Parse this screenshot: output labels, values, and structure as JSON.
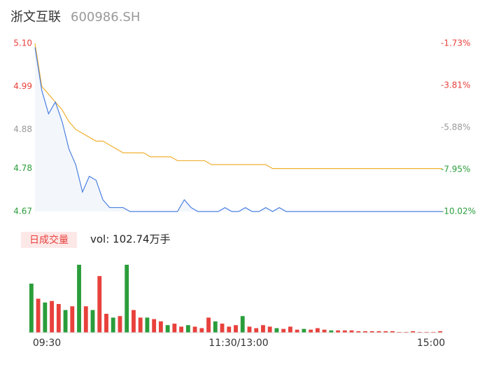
{
  "chart_data": {
    "type": "line",
    "title": "浙文互联",
    "subtitle": "600986.SH",
    "categories": [
      "09:30",
      null,
      null,
      null,
      null,
      null,
      null,
      null,
      null,
      null,
      null,
      null,
      null,
      null,
      null,
      null,
      null,
      null,
      null,
      null,
      null,
      null,
      null,
      null,
      null,
      null,
      null,
      null,
      null,
      null,
      "11:30/13:00",
      null,
      null,
      null,
      null,
      null,
      null,
      null,
      null,
      null,
      null,
      null,
      null,
      null,
      null,
      null,
      null,
      null,
      null,
      null,
      null,
      null,
      null,
      null,
      null,
      null,
      null,
      null,
      null,
      null,
      "15:00"
    ],
    "series": [
      {
        "color": "#4a7fe0",
        "values": [
          5.09,
          4.98,
          4.92,
          4.95,
          4.9,
          4.83,
          4.79,
          4.72,
          4.76,
          4.75,
          4.7,
          4.68,
          4.68,
          4.68,
          4.67,
          4.67,
          4.67,
          4.67,
          4.67,
          4.67,
          4.67,
          4.67,
          4.7,
          4.68,
          4.67,
          4.67,
          4.67,
          4.67,
          4.68,
          4.67,
          4.67,
          4.68,
          4.67,
          4.67,
          4.68,
          4.67,
          4.68,
          4.67,
          4.67,
          4.67,
          4.67,
          4.67,
          4.67,
          4.67,
          4.67,
          4.67,
          4.67,
          4.67,
          4.67,
          4.67,
          4.67,
          4.67,
          4.67,
          4.67,
          4.67,
          4.67,
          4.67,
          4.67,
          4.67,
          4.67,
          4.67
        ]
      },
      {
        "color": "#f0b030",
        "values": [
          5.1,
          4.99,
          4.97,
          4.95,
          4.93,
          4.9,
          4.88,
          4.87,
          4.86,
          4.85,
          4.85,
          4.84,
          4.83,
          4.82,
          4.82,
          4.82,
          4.82,
          4.81,
          4.81,
          4.81,
          4.81,
          4.8,
          4.8,
          4.8,
          4.8,
          4.8,
          4.79,
          4.79,
          4.79,
          4.79,
          4.79,
          4.79,
          4.79,
          4.79,
          4.79,
          4.78,
          4.78,
          4.78,
          4.78,
          4.78,
          4.78,
          4.78,
          4.78,
          4.78,
          4.78,
          4.78,
          4.78,
          4.78,
          4.78,
          4.78,
          4.78,
          4.78,
          4.78,
          4.78,
          4.78,
          4.78,
          4.78,
          4.78,
          4.78,
          4.78,
          4.78
        ]
      }
    ],
    "ylim": [
      4.67,
      5.1
    ],
    "yticks": [
      {
        "value": 5.1,
        "label": "5.10"
      },
      4.99,
      4.88,
      4.78,
      4.67
    ],
    "y2lim": [
      -10.02,
      -1.73
    ],
    "y2ticks": [
      {
        "value": -1.73,
        "label": "-1.73%"
      },
      {
        "value": -3.81,
        "label": "-3.81%"
      },
      {
        "value": -5.88,
        "label": "-5.88%"
      },
      {
        "value": -7.95,
        "label": "-7.95%"
      },
      {
        "value": -10.02,
        "label": "-10.02%"
      }
    ],
    "volume": {
      "label": "日成交量",
      "summary": "vol: 102.74万手",
      "values": [
        65,
        45,
        40,
        42,
        38,
        30,
        35,
        90,
        35,
        30,
        75,
        25,
        20,
        22,
        90,
        30,
        20,
        20,
        18,
        15,
        10,
        12,
        8,
        10,
        8,
        6,
        20,
        15,
        12,
        8,
        10,
        22,
        8,
        6,
        10,
        8,
        6,
        5,
        8,
        4,
        5,
        4,
        6,
        4,
        3,
        3,
        3,
        3,
        2,
        2,
        2,
        2,
        2,
        2,
        1,
        1,
        2,
        1,
        1,
        1,
        2
      ],
      "colors": [
        "#2a9d3b",
        "#e8413c",
        "#2a9d3b",
        "#e8413c",
        "#e8413c",
        "#2a9d3b",
        "#e8413c",
        "#2a9d3b",
        "#e8413c",
        "#2a9d3b",
        "#e8413c",
        "#e8413c",
        "#2a9d3b",
        "#e8413c",
        "#2a9d3b",
        "#e8413c",
        "#e8413c",
        "#2a9d3b",
        "#e8413c",
        "#e8413c",
        "#2a9d3b",
        "#e8413c",
        "#e8413c",
        "#2a9d3b",
        "#e8413c",
        "#e8413c",
        "#e8413c",
        "#2a9d3b",
        "#e8413c",
        "#e8413c",
        "#e8413c",
        "#2a9d3b",
        "#e8413c",
        "#e8413c",
        "#e8413c",
        "#e8413c",
        "#2a9d3b",
        "#e8413c",
        "#e8413c",
        "#e8413c",
        "#2a9d3b",
        "#e8413c",
        "#e8413c",
        "#e8413c",
        "#2a9d3b",
        "#e8413c",
        "#e8413c",
        "#e8413c",
        "#e8413c",
        "#e8413c",
        "#e8413c",
        "#e8413c",
        "#e8413c",
        "#e8413c",
        "#e8413c",
        "#e8413c",
        "#e8413c",
        "#e8413c",
        "#e8413c",
        "#e8413c",
        "#e8413c"
      ]
    }
  }
}
